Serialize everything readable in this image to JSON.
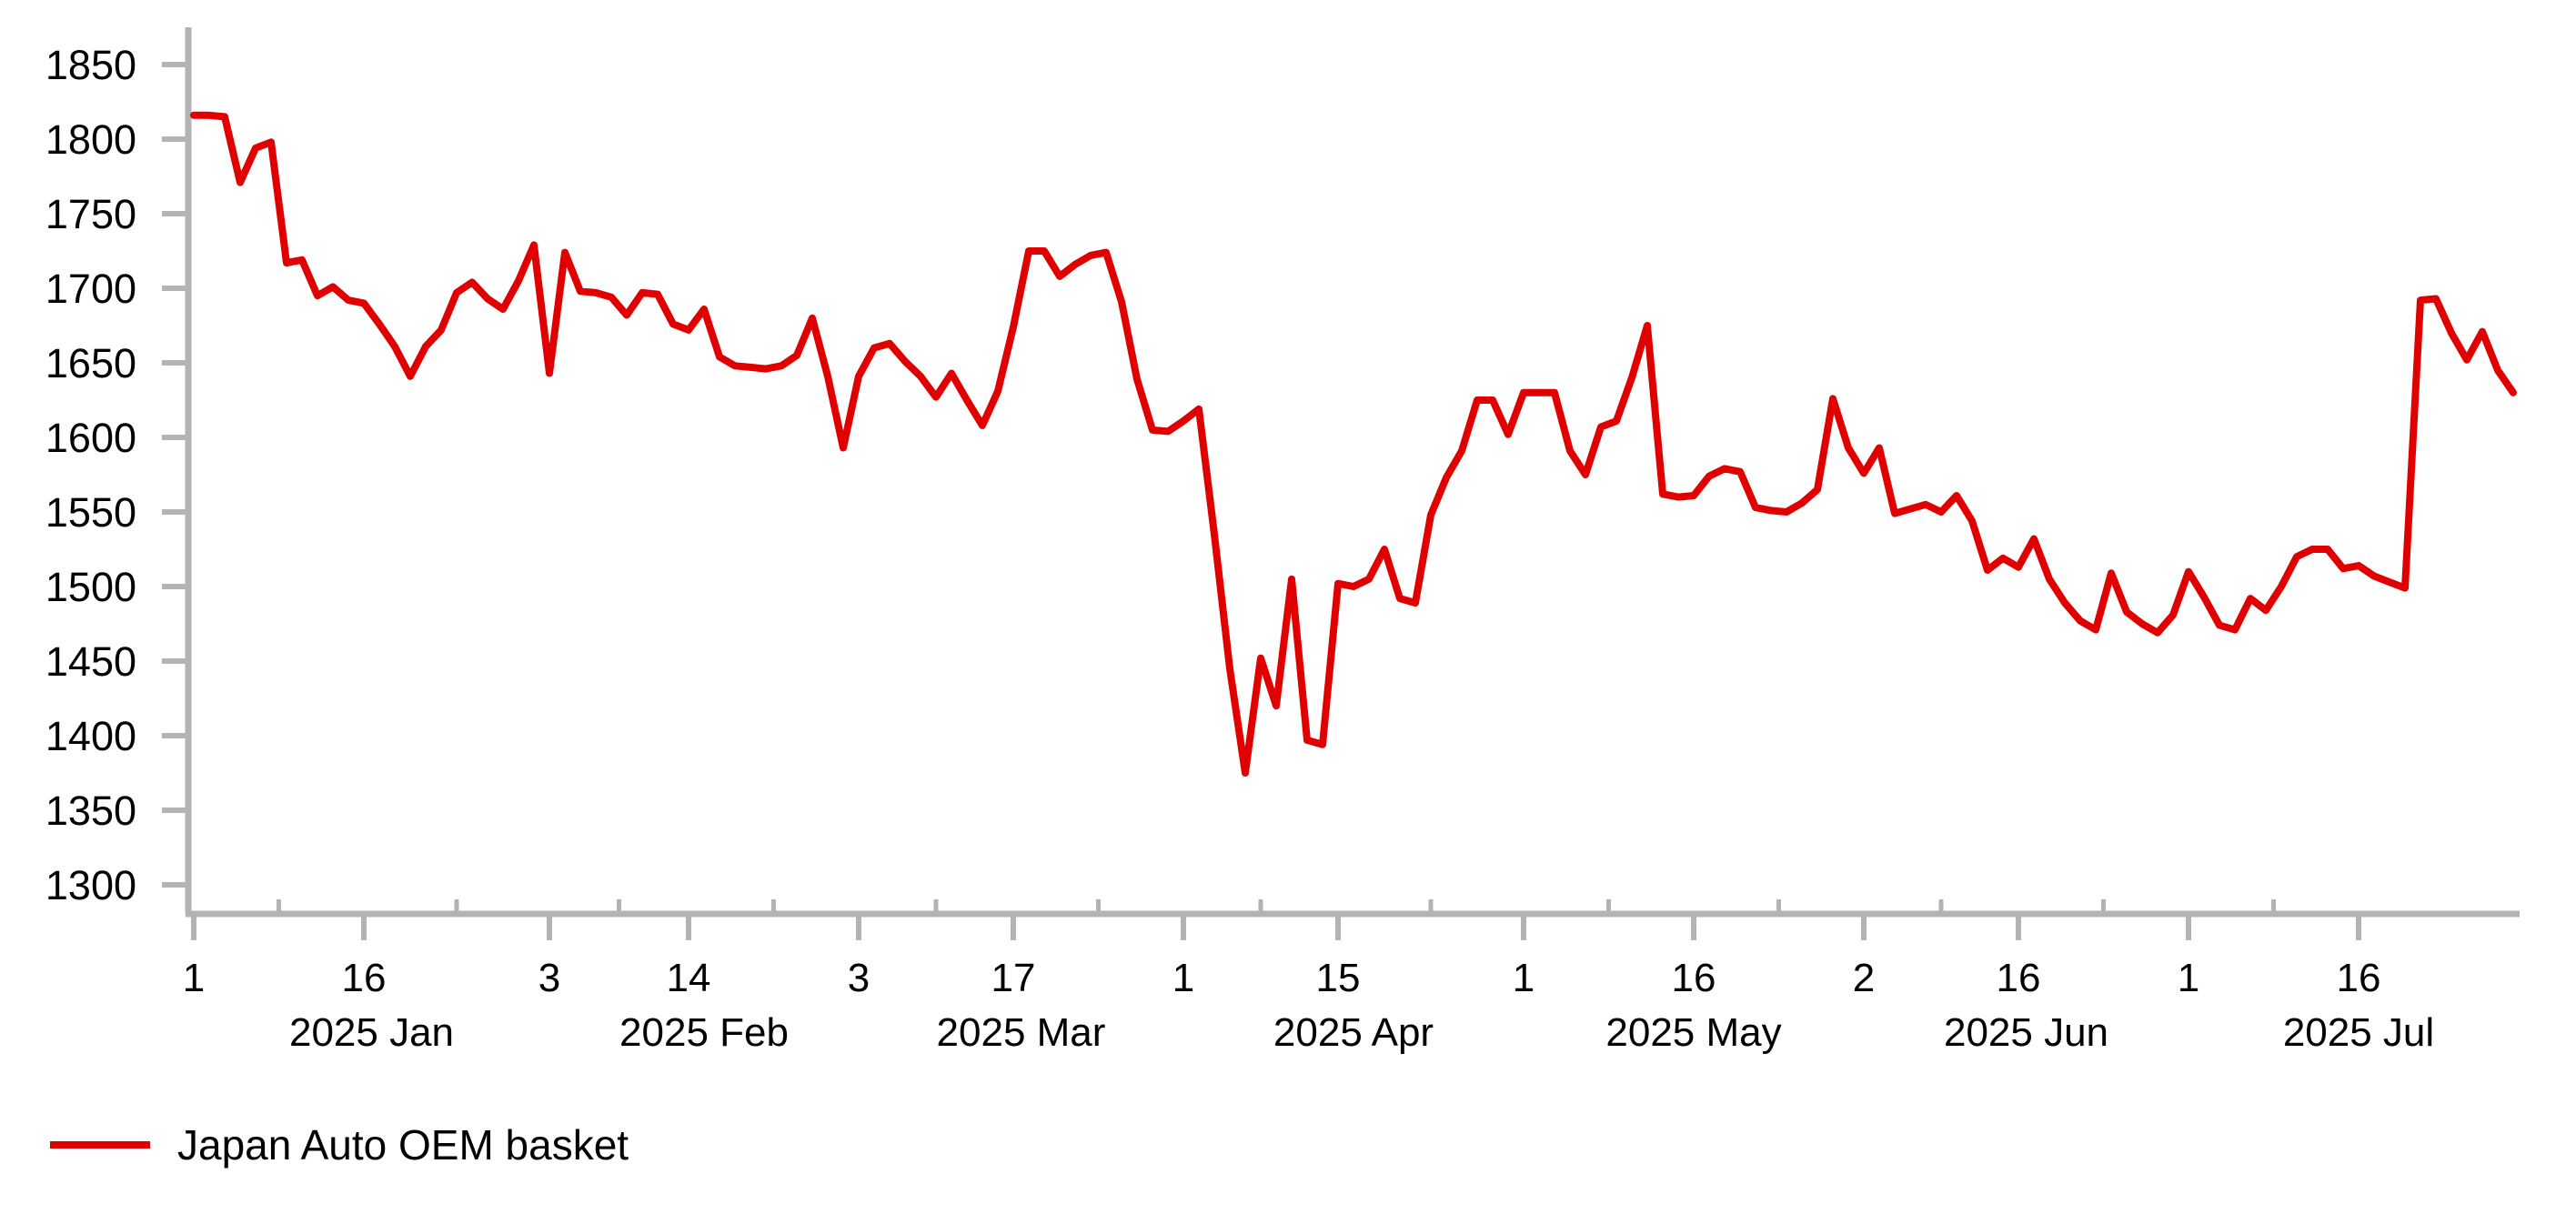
{
  "legend": {
    "series_label": "Japan Auto OEM basket"
  },
  "colors": {
    "line": "#e10000",
    "axis": "#b3b3b3",
    "text": "#000000"
  },
  "chart_data": {
    "type": "line",
    "title": "",
    "xlabel": "",
    "ylabel": "",
    "grid": false,
    "legend_position": "bottom-left",
    "ylim": [
      1280,
      1875
    ],
    "y_ticks": [
      1850,
      1800,
      1750,
      1700,
      1650,
      1600,
      1550,
      1500,
      1450,
      1400,
      1350,
      1300
    ],
    "x_axis": {
      "tick_indices": [
        0,
        11,
        23,
        32,
        43,
        53,
        64,
        74,
        86,
        97,
        108,
        118,
        129,
        140
      ],
      "tick_labels": [
        "1",
        "16",
        "3",
        "14",
        "3",
        "17",
        "1",
        "15",
        "1",
        "16",
        "2",
        "16",
        "1",
        "16"
      ],
      "month_labels": [
        "2025 Jan",
        "2025 Feb",
        "2025 Mar",
        "2025 Apr",
        "2025 May",
        "2025 Jun",
        "2025 Jul"
      ],
      "month_start_indices": [
        0,
        23,
        43,
        64,
        86,
        108,
        129,
        151
      ]
    },
    "series": [
      {
        "name": "Japan Auto OEM basket",
        "color": "#e10000",
        "values": [
          1816,
          1816,
          1815,
          1771,
          1794,
          1798,
          1717,
          1719,
          1695,
          1701,
          1692,
          1690,
          1676,
          1661,
          1641,
          1661,
          1672,
          1697,
          1704,
          1693,
          1686,
          1705,
          1729,
          1643,
          1724,
          1698,
          1697,
          1694,
          1682,
          1697,
          1696,
          1676,
          1672,
          1686,
          1654,
          1648,
          1647,
          1646,
          1648,
          1655,
          1680,
          1641,
          1593,
          1641,
          1660,
          1663,
          1651,
          1641,
          1627,
          1643,
          1625,
          1608,
          1631,
          1674,
          1725,
          1725,
          1708,
          1716,
          1722,
          1724,
          1691,
          1639,
          1605,
          1604,
          1611,
          1619,
          1535,
          1445,
          1375,
          1452,
          1420,
          1505,
          1397,
          1394,
          1502,
          1500,
          1505,
          1525,
          1492,
          1489,
          1548,
          1573,
          1591,
          1625,
          1625,
          1602,
          1630,
          1630,
          1630,
          1591,
          1575,
          1607,
          1611,
          1640,
          1675,
          1562,
          1560,
          1561,
          1574,
          1579,
          1577,
          1553,
          1551,
          1550,
          1556,
          1565,
          1626,
          1593,
          1576,
          1593,
          1549,
          1552,
          1555,
          1550,
          1561,
          1544,
          1511,
          1519,
          1513,
          1532,
          1505,
          1489,
          1477,
          1471,
          1509,
          1483,
          1475,
          1469,
          1481,
          1510,
          1493,
          1474,
          1471,
          1492,
          1484,
          1500,
          1520,
          1525,
          1525,
          1512,
          1514,
          1507,
          1503,
          1499,
          1692,
          1693,
          1670,
          1652,
          1671,
          1645,
          1630
        ]
      }
    ]
  }
}
